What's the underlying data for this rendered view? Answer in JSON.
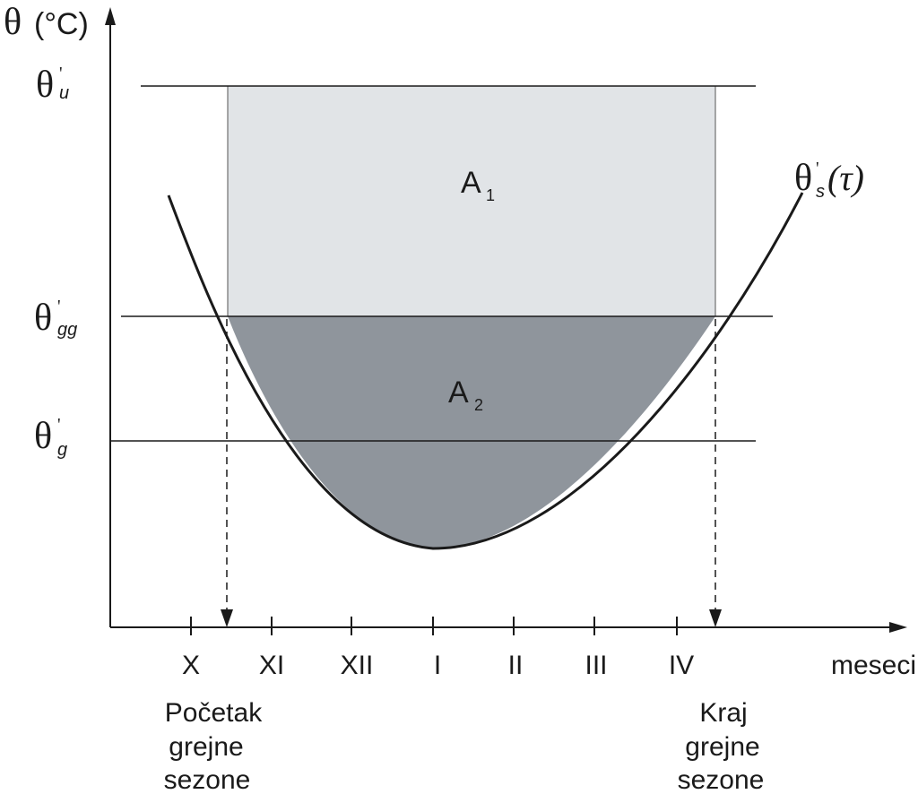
{
  "axes": {
    "y_label_symbol": "θ",
    "y_label_unit": "(°C)",
    "x_label": "meseci",
    "months": [
      "X",
      "XI",
      "XII",
      "I",
      "II",
      "III",
      "IV"
    ]
  },
  "levels": {
    "u": {
      "symbol": "θ",
      "mark": "'",
      "subscript": "u"
    },
    "gg": {
      "symbol": "θ",
      "mark": "'",
      "subscript": "gg"
    },
    "g": {
      "symbol": "θ",
      "mark": "'",
      "subscript": "g"
    }
  },
  "curve_label": {
    "symbol": "θ",
    "mark": "'",
    "subscript": "s",
    "arg": "(τ)"
  },
  "areas": {
    "a1": {
      "letter": "A",
      "sub": "1"
    },
    "a2": {
      "letter": "A",
      "sub": "2"
    }
  },
  "season_start": [
    "Početak",
    "grejne",
    "sezone"
  ],
  "season_end": [
    "Kraj",
    "grejne",
    "sezone"
  ],
  "colors": {
    "a1_fill": "#e1e4e7",
    "a2_fill": "#8f959c",
    "line": "#1a1a1a"
  }
}
